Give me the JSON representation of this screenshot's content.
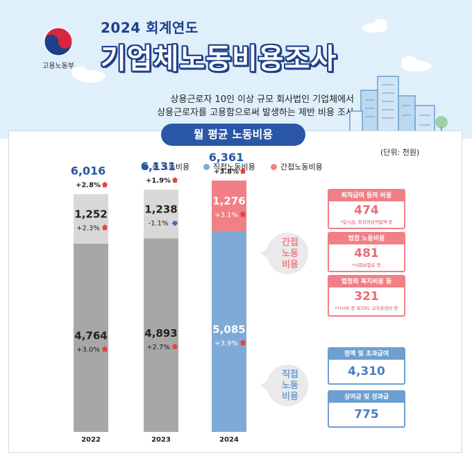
{
  "header": {
    "ministry": "고용노동부",
    "year_title": "2024 회계연도",
    "main_title": "기업체노동비용조사",
    "subtitle_line1": "상용근로자 10인 이상 규모 회사법인 기업체에서",
    "subtitle_line2": "상용근로자를 고용함으로써 발생하는 제반 비용 조사"
  },
  "section": {
    "title": "월 평균 노동비용",
    "unit": "(단위: 천원)"
  },
  "legend": [
    {
      "label": "총 노동비용",
      "color": "#2a56a6"
    },
    {
      "label": "직접노동비용",
      "color": "#7eaad5"
    },
    {
      "label": "간접노동비용",
      "color": "#f07f86"
    }
  ],
  "chart_data": {
    "type": "bar",
    "stacked": true,
    "categories": [
      "2022",
      "2023",
      "2024"
    ],
    "totals": [
      "6,016",
      "6,131",
      "6,361"
    ],
    "total_changes": [
      "+2.8%",
      "+1.9%",
      "+3.8%"
    ],
    "total_values": [
      6016,
      6131,
      6361
    ],
    "series": [
      {
        "name": "직접노동비용",
        "values": [
          4764,
          4893,
          5085
        ],
        "labels": [
          "4,764",
          "4,893",
          "5,085"
        ],
        "changes": [
          "+3.0%",
          "+2.7%",
          "+3.9%"
        ],
        "change_dirs": [
          "up",
          "up",
          "up"
        ]
      },
      {
        "name": "간접노동비용",
        "values": [
          1252,
          1238,
          1276
        ],
        "labels": [
          "1,252",
          "1,238",
          "1,276"
        ],
        "changes": [
          "+2.3%",
          "-1.1%",
          "+3.1%"
        ],
        "change_dirs": [
          "up",
          "down",
          "up"
        ]
      }
    ],
    "colors": {
      "past_direct": "#a7a7a7",
      "past_indirect": "#d8d8d8",
      "current_direct": "#7eaad5",
      "current_indirect": "#f07f86",
      "up_arrow": "#e5433f",
      "down_arrow": "#2f6fc6"
    }
  },
  "callouts": {
    "indirect_label": "간접\n노동\n비용",
    "direct_label": "직접\n노동\n비용"
  },
  "indirect_breakdown": [
    {
      "title": "퇴직급여 등의 비용",
      "value": "474",
      "note": "*일시금, 퇴직연금적립액 등"
    },
    {
      "title": "법정 노동비용",
      "value": "481",
      "note": "*사회보험료 등"
    },
    {
      "title": "법정외 복지비용 등",
      "value": "321",
      "note": "*식사비 등 복지비, 교육훈련비 등"
    }
  ],
  "direct_breakdown": [
    {
      "title": "정액 및 초과급여",
      "value": "4,310"
    },
    {
      "title": "상여금 및 성과급",
      "value": "775"
    }
  ]
}
